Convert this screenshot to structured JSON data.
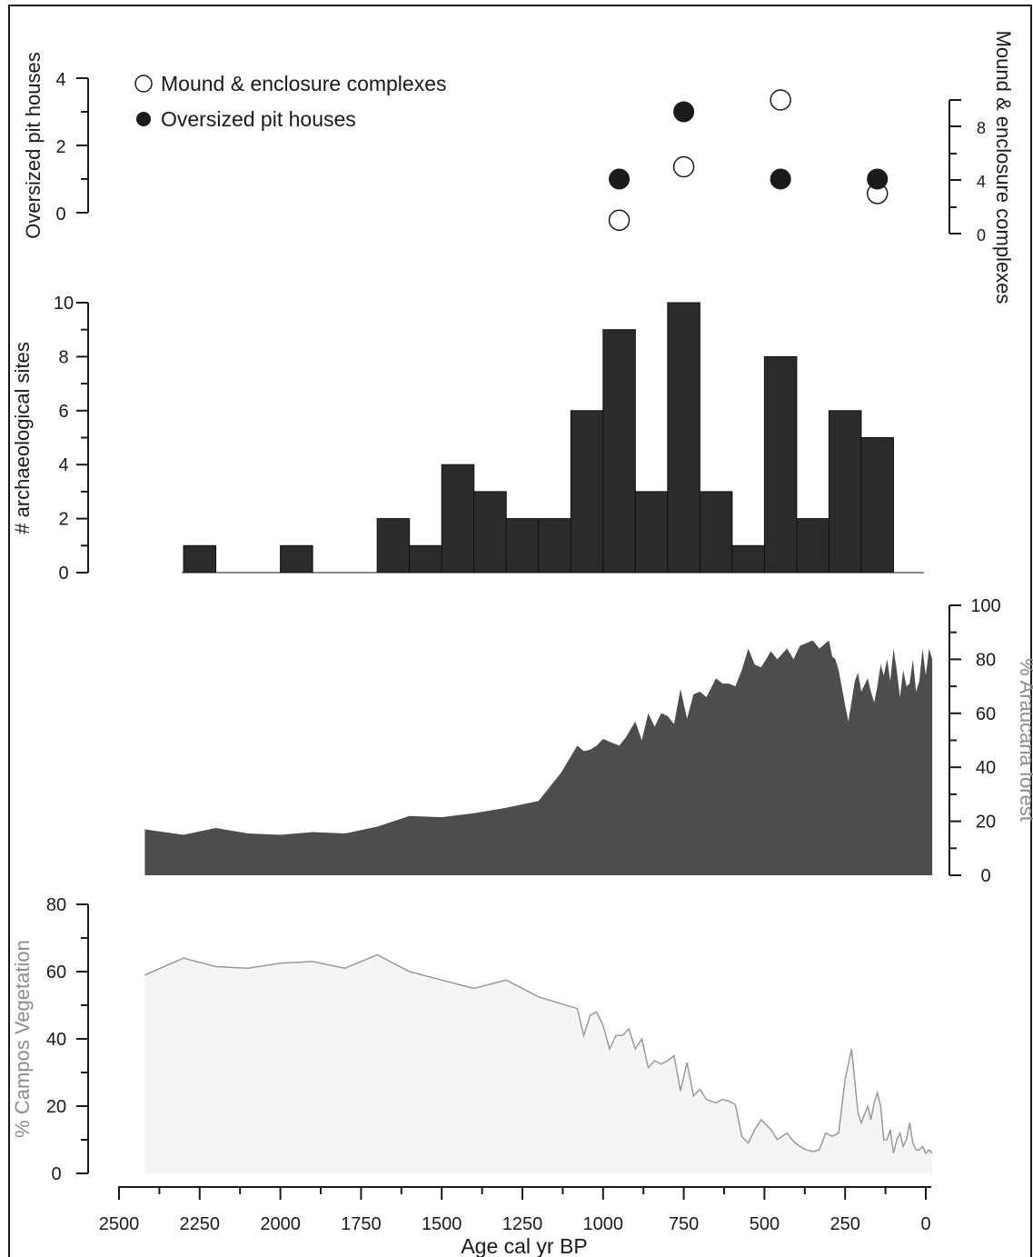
{
  "chart_data": [
    {
      "type": "scatter",
      "panel": "settlement-features",
      "ylabel_left": "Oversized pit houses",
      "ylabel_right": "Mound & enclosure complexes",
      "ylim_left": [
        0,
        4
      ],
      "ylim_right": [
        0,
        10
      ],
      "yticks_left": [
        "0",
        "2",
        "4"
      ],
      "yticks_right": [
        "0",
        "4",
        "8"
      ],
      "legend_placement": "top-left",
      "series": [
        {
          "name": "Mound & enclosure complexes",
          "marker": "open-circle",
          "axis": "right",
          "x": [
            950,
            750,
            450,
            150
          ],
          "y": [
            1,
            5,
            10,
            3
          ]
        },
        {
          "name": "Oversized pit houses",
          "marker": "filled-circle",
          "axis": "left",
          "x": [
            950,
            750,
            450,
            150
          ],
          "y": [
            1,
            3,
            1,
            1
          ]
        }
      ]
    },
    {
      "type": "bar",
      "panel": "archaeological-sites",
      "ylabel": "# archaeological sites",
      "ylim": [
        0,
        10
      ],
      "yticks": [
        "0",
        "2",
        "4",
        "6",
        "8",
        "10"
      ],
      "bin_width": 100,
      "bin_starts": [
        2300,
        2200,
        2100,
        2000,
        1900,
        1800,
        1700,
        1600,
        1500,
        1400,
        1300,
        1200,
        1100,
        1000,
        900,
        800,
        700,
        600,
        500,
        400,
        300,
        200,
        100,
        0
      ],
      "values": [
        0,
        1,
        0,
        0,
        1,
        0,
        0,
        2,
        1,
        4,
        3,
        2,
        2,
        6,
        9,
        3,
        10,
        3,
        1,
        8,
        2,
        6,
        5,
        0
      ],
      "bar_color": "#2b2b2b"
    },
    {
      "type": "area",
      "panel": "araucaria-forest",
      "ylabel": "% Araucaria forest",
      "ylim": [
        0,
        100
      ],
      "yticks": [
        "0",
        "20",
        "40",
        "60",
        "80",
        "100"
      ],
      "fill_color": "#4d4d4d",
      "x": [
        2420,
        2300,
        2200,
        2100,
        2000,
        1900,
        1800,
        1700,
        1600,
        1500,
        1400,
        1300,
        1200,
        1130,
        1080,
        1060,
        1040,
        1020,
        1000,
        970,
        950,
        930,
        900,
        880,
        860,
        840,
        820,
        800,
        780,
        760,
        740,
        720,
        700,
        680,
        650,
        630,
        610,
        590,
        570,
        550,
        530,
        510,
        480,
        460,
        430,
        410,
        390,
        370,
        350,
        330,
        310,
        300,
        290,
        280,
        270,
        250,
        240,
        220,
        210,
        200,
        180,
        170,
        160,
        150,
        140,
        130,
        120,
        110,
        100,
        90,
        80,
        70,
        60,
        50,
        40,
        30,
        20,
        10,
        0,
        -10,
        -20
      ],
      "y": [
        17,
        15,
        17.5,
        15.5,
        15,
        16,
        15.5,
        18,
        22,
        21.5,
        23,
        25,
        27.5,
        38,
        48,
        46,
        46.5,
        48,
        50.5,
        49,
        48,
        51,
        57,
        50,
        60,
        55,
        60,
        59,
        56,
        69,
        58,
        67,
        68,
        66,
        73,
        71,
        71,
        70,
        76,
        84,
        78,
        77,
        83,
        80,
        84,
        80,
        85,
        86,
        87,
        84,
        86,
        87,
        81,
        80,
        76,
        63,
        57,
        72,
        75,
        68,
        73,
        68,
        64,
        70,
        78,
        74,
        80,
        72,
        84,
        76,
        66,
        76,
        70,
        71,
        80,
        68,
        72,
        84,
        74,
        84,
        80
      ],
      "xlabel": "Age cal yr BP",
      "xticks": [
        "2500",
        "2250",
        "2000",
        "1750",
        "1500",
        "1250",
        "1000",
        "750",
        "500",
        "250",
        "0"
      ]
    },
    {
      "type": "area",
      "panel": "campos-vegetation",
      "ylabel": "% Campos Vegetation",
      "ylim": [
        0,
        80
      ],
      "yticks": [
        "0",
        "20",
        "40",
        "60",
        "80"
      ],
      "fill_color": "#f5f5f5",
      "line_color": "#9a9a9a",
      "x": [
        2420,
        2300,
        2200,
        2100,
        2000,
        1900,
        1800,
        1700,
        1600,
        1500,
        1400,
        1300,
        1200,
        1080,
        1060,
        1040,
        1020,
        1000,
        980,
        960,
        940,
        920,
        900,
        880,
        860,
        840,
        820,
        800,
        780,
        760,
        740,
        720,
        700,
        680,
        650,
        630,
        610,
        590,
        570,
        550,
        530,
        510,
        480,
        460,
        430,
        410,
        390,
        370,
        350,
        330,
        310,
        290,
        270,
        250,
        230,
        210,
        200,
        180,
        170,
        160,
        150,
        140,
        130,
        120,
        110,
        100,
        90,
        80,
        70,
        60,
        50,
        40,
        30,
        20,
        10,
        0,
        -10,
        -20
      ],
      "y": [
        59,
        64,
        61.5,
        61,
        62.5,
        63,
        61,
        65,
        60,
        57.5,
        55,
        57.5,
        52.5,
        49,
        41,
        47,
        48,
        44,
        37,
        41,
        41,
        43,
        37,
        40,
        31.5,
        33.5,
        32.5,
        33.5,
        35,
        24.5,
        33,
        23,
        25,
        22,
        21,
        22,
        21.5,
        20.5,
        11,
        9,
        13,
        16,
        13,
        10,
        12,
        9.5,
        8,
        7,
        6.5,
        7,
        12,
        11,
        12,
        28,
        37,
        18,
        15,
        20,
        16,
        21,
        24,
        20,
        10,
        10,
        13,
        6,
        10,
        12,
        8,
        10,
        15,
        9,
        7,
        7,
        8,
        6,
        7,
        6
      ],
      "xlabel": "Age cal yr BP",
      "xticks": [
        "2500",
        "2250",
        "2000",
        "1750",
        "1500",
        "1250",
        "1000",
        "750",
        "500",
        "250",
        "0"
      ]
    }
  ]
}
